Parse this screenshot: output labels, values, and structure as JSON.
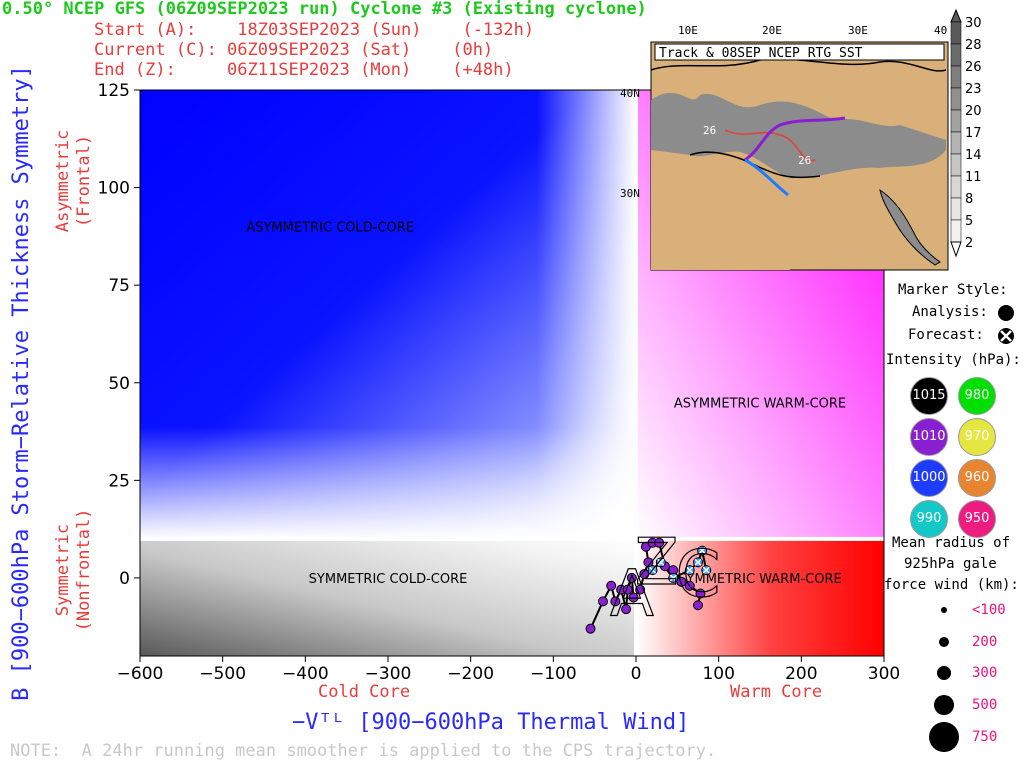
{
  "header": {
    "title": "0.50° NCEP GFS (06Z09SEP2023 run) Cyclone #3 (Existing cyclone)",
    "start": "Start (A):    18Z03SEP2023 (Sun)    (-132h)",
    "current": "Current (C): 06Z09SEP2023 (Sat)    (0h)",
    "end": "End (Z):     06Z11SEP2023 (Mon)    (+48h)"
  },
  "note": "NOTE:  A 24hr running mean smoother is applied to the CPS trajectory.",
  "colors": {
    "cold_asym": "#0000ff",
    "warm_asym": "#ff00ff",
    "warm_sym": "#ff0000",
    "cold_sym": "#595959",
    "title_green": "#1ec81e",
    "label_red": "#e83c3c",
    "xlabel_blue": "#2a2aff",
    "track_purple": "#8a1fd1"
  },
  "chart_data": {
    "type": "scatter",
    "xlabel": "−Vᵀᴸ [900−600hPa Thermal Wind]",
    "ylabel": "B [900−600hPa Storm−Relative Thickness Symmetry]",
    "xlim": [
      -600,
      300
    ],
    "ylim": [
      -20,
      125
    ],
    "xticks": [
      -600,
      -500,
      -400,
      -300,
      -200,
      -100,
      0,
      100,
      200,
      300
    ],
    "yticks": [
      0,
      25,
      50,
      75,
      100,
      125
    ],
    "x_side_labels": {
      "left": "Cold Core",
      "right": "Warm Core"
    },
    "y_side_labels": {
      "top": [
        "Asymmetric",
        "(Frontal)"
      ],
      "bottom": [
        "Symmetric",
        "(Nonfrontal)"
      ]
    },
    "region_labels": [
      {
        "text": "ASYMMETRIC COLD-CORE",
        "x": -370,
        "y": 90
      },
      {
        "text": "ASYMMETRIC WARM-CORE",
        "x": 150,
        "y": 45
      },
      {
        "text": "SYMMETRIC COLD-CORE",
        "x": -300,
        "y": 0
      },
      {
        "text": "SYMMETRIC WARM-CORE",
        "x": 150,
        "y": 0
      }
    ],
    "series": [
      {
        "marker": "analysis",
        "points": [
          {
            "x": -55,
            "y": -13
          },
          {
            "x": -40,
            "y": -6
          },
          {
            "x": -30,
            "y": -2
          },
          {
            "x": -25,
            "y": -6
          },
          {
            "x": -18,
            "y": -3
          },
          {
            "x": -12,
            "y": -8
          },
          {
            "x": -10,
            "y": -3
          },
          {
            "x": -5,
            "y": 0
          },
          {
            "x": -3,
            "y": -5
          },
          {
            "x": 5,
            "y": -3
          },
          {
            "x": 10,
            "y": 1
          },
          {
            "x": 15,
            "y": 4
          },
          {
            "x": 12,
            "y": 8
          },
          {
            "x": 20,
            "y": 9
          },
          {
            "x": 28,
            "y": 9
          },
          {
            "x": 35,
            "y": 3
          },
          {
            "x": 45,
            "y": 2
          },
          {
            "x": 55,
            "y": -1
          },
          {
            "x": 65,
            "y": -2
          },
          {
            "x": 78,
            "y": -4
          },
          {
            "x": 75,
            "y": -7
          }
        ]
      },
      {
        "marker": "forecast",
        "points": [
          {
            "x": 20,
            "y": 2
          },
          {
            "x": 30,
            "y": 4
          },
          {
            "x": 45,
            "y": 0
          },
          {
            "x": 65,
            "y": 2
          },
          {
            "x": 75,
            "y": 4
          },
          {
            "x": 80,
            "y": 7
          },
          {
            "x": 85,
            "y": 2
          }
        ]
      }
    ],
    "track_letters": [
      {
        "letter": "A",
        "x": -5,
        "y": -5
      },
      {
        "letter": "C",
        "x": 75,
        "y": 0
      },
      {
        "letter": "Z",
        "x": 25,
        "y": 3
      }
    ]
  },
  "inset": {
    "title": "Track & 08SEP NCEP RTG SST",
    "lon_labels": [
      "10E",
      "20E",
      "30E",
      "40"
    ],
    "lat_labels": [
      "40N",
      "30N"
    ],
    "sst_labels": [
      "26",
      "26"
    ],
    "scale": [
      "30",
      "28",
      "26",
      "23",
      "20",
      "17",
      "14",
      "11",
      "8",
      "5",
      "2"
    ],
    "scale_colors": [
      "#5a5a5a",
      "#6c6c6c",
      "#7e7e7e",
      "#909090",
      "#a2a2a2",
      "#b4b4b4",
      "#c6c6c6",
      "#d8d8d8",
      "#e6e6e6",
      "#f2f2f2"
    ]
  },
  "legend": {
    "marker_style": "Marker Style:",
    "analysis": "Analysis:",
    "forecast": "Forecast:",
    "intensity": "Intensity (hPa):",
    "intensity_items": [
      {
        "label": "1015",
        "color": "#000000"
      },
      {
        "label": "980",
        "color": "#00e000"
      },
      {
        "label": "1010",
        "color": "#8a1fd1"
      },
      {
        "label": "970",
        "color": "#e6e640"
      },
      {
        "label": "1000",
        "color": "#1e3cff"
      },
      {
        "label": "960",
        "color": "#e88530"
      },
      {
        "label": "990",
        "color": "#14c8c8"
      },
      {
        "label": "950",
        "color": "#ee1b80"
      }
    ],
    "radius_title": [
      "Mean radius of",
      "925hPa gale",
      "force wind (km):"
    ],
    "radius_items": [
      "<100",
      "200",
      "300",
      "500",
      "750"
    ]
  }
}
